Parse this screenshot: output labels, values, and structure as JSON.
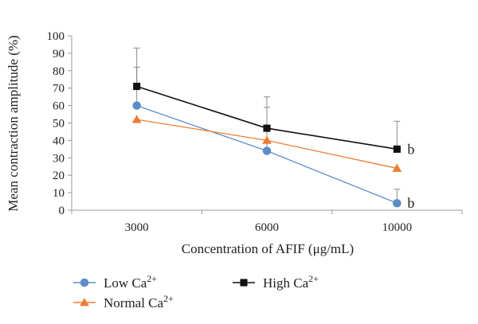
{
  "chart_data": {
    "type": "line",
    "title": "",
    "xlabel": "Concentration of AFIF (μg/mL)",
    "ylabel": "Mean contraction amplitude (%)",
    "categories": [
      "3000",
      "6000",
      "10000"
    ],
    "ylim": [
      0,
      100
    ],
    "yticks": [
      0,
      10,
      20,
      30,
      40,
      50,
      60,
      70,
      80,
      90,
      100
    ],
    "grid": false,
    "legend_position": "bottom",
    "series": [
      {
        "name": "Low Ca2+",
        "color": "#5b8cc6",
        "marker": "circle",
        "values": [
          60,
          34,
          4
        ],
        "error_upper": [
          82,
          59,
          12
        ]
      },
      {
        "name": "Normal Ca2+",
        "color": "#ed7d31",
        "marker": "triangle",
        "values": [
          52,
          40,
          24
        ],
        "error_upper": [
          null,
          null,
          null
        ]
      },
      {
        "name": "High Ca2+",
        "color": "#111111",
        "marker": "square",
        "values": [
          71,
          47,
          35
        ],
        "error_upper": [
          93,
          65,
          51
        ]
      }
    ],
    "annotations": [
      {
        "text": "b",
        "category": "10000",
        "value": 35
      },
      {
        "text": "b",
        "category": "10000",
        "value": 4
      }
    ]
  }
}
